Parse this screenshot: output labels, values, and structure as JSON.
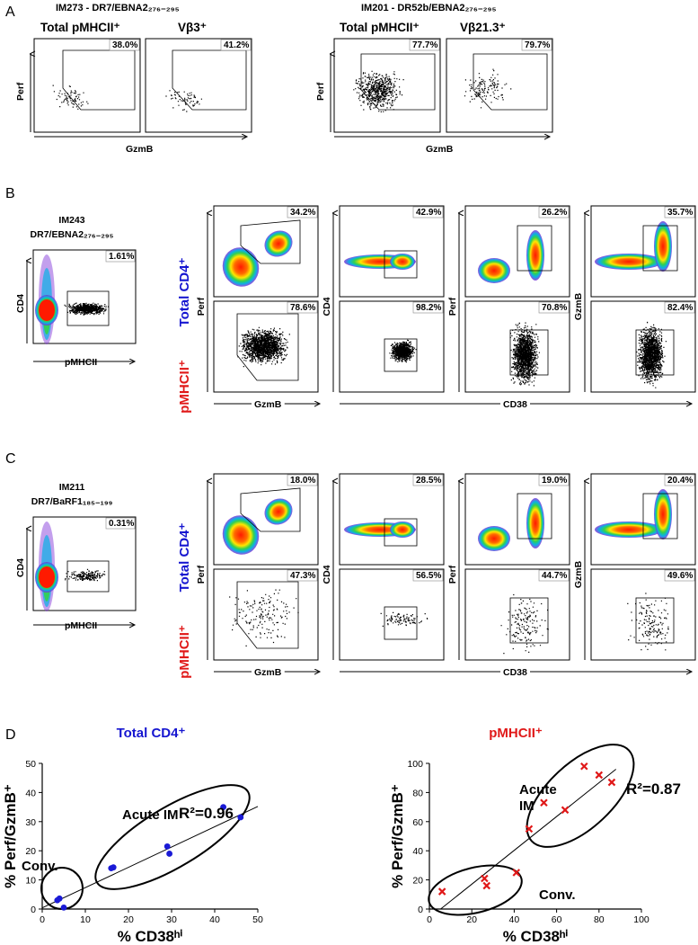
{
  "panel_labels": {
    "A": "A",
    "B": "B",
    "C": "C",
    "D": "D"
  },
  "A": {
    "im273": {
      "header": "IM273 - DR7/EBNA2₂₇₆₋₂₉₅",
      "p1": {
        "title": "Total pMHCII⁺",
        "pct": "38.0%"
      },
      "p2": {
        "title": "Vβ3⁺",
        "pct": "41.2%"
      },
      "xlabel": "GzmB",
      "ylabel": "Perf"
    },
    "im201": {
      "header": "IM201 - DR52b/EBNA2₂₇₆₋₂₉₅",
      "p1": {
        "title": "Total pMHCII⁺",
        "pct": "77.7%"
      },
      "p2": {
        "title": "Vβ21.3⁺",
        "pct": "79.7%"
      },
      "xlabel": "GzmB",
      "ylabel": "Perf"
    }
  },
  "B": {
    "donor": "IM243",
    "epitope": "DR7/EBNA2₂₇₆₋₂₉₅",
    "gate_pct": "1.61%",
    "ylabel": "CD4",
    "xlabel": "pMHCII",
    "row1_label": "Total CD4⁺",
    "row2_label": "pMHCII⁺",
    "row1_pcts": [
      "34.2%",
      "42.9%",
      "26.2%",
      "35.7%"
    ],
    "row2_pcts": [
      "78.6%",
      "98.2%",
      "70.8%",
      "82.4%"
    ],
    "col_ylabels": [
      "Perf",
      "CD4",
      "Perf",
      "GzmB"
    ],
    "xlabel_left": "GzmB",
    "xlabel_right": "CD38"
  },
  "C": {
    "donor": "IM211",
    "epitope": "DR7/BaRF1₁₈₅₋₁₉₉",
    "gate_pct": "0.31%",
    "ylabel": "CD4",
    "xlabel": "pMHCII",
    "row1_label": "Total CD4⁺",
    "row2_label": "pMHCII⁺",
    "row1_pcts": [
      "18.0%",
      "28.5%",
      "19.0%",
      "20.4%"
    ],
    "row2_pcts": [
      "47.3%",
      "56.5%",
      "44.7%",
      "49.6%"
    ],
    "col_ylabels": [
      "Perf",
      "CD4",
      "Perf",
      "GzmB"
    ],
    "xlabel_left": "GzmB",
    "xlabel_right": "CD38"
  },
  "chart_data": [
    {
      "type": "scatter",
      "title": "Total CD4⁺",
      "xlabel": "% CD38ʰⁱ",
      "ylabel": "% Perf/GzmB⁺",
      "xlim": [
        0,
        50
      ],
      "ylim": [
        0,
        50
      ],
      "xticks": [
        "0",
        "10",
        "20",
        "30",
        "40",
        "50"
      ],
      "yticks": [
        "0",
        "10",
        "20",
        "30",
        "40",
        "50"
      ],
      "points": [
        [
          3.5,
          3
        ],
        [
          4,
          3.6
        ],
        [
          5,
          0.5
        ],
        [
          16,
          14
        ],
        [
          16.5,
          14.3
        ],
        [
          29,
          21.5
        ],
        [
          29.5,
          19
        ],
        [
          42,
          35
        ],
        [
          46,
          31.5
        ]
      ],
      "fit": [
        [
          0,
          0.4
        ],
        [
          50,
          35.2
        ]
      ],
      "annotations": {
        "group1": "Conv.",
        "group2": "Acute IM",
        "r2": "R²=0.96"
      },
      "color": "#1a1ad6"
    },
    {
      "type": "scatter",
      "title": "pMHCII⁺",
      "xlabel": "% CD38ʰⁱ",
      "ylabel": "% Perf/GzmB⁺",
      "xlim": [
        0,
        100
      ],
      "ylim": [
        0,
        100
      ],
      "xticks": [
        "0",
        "20",
        "40",
        "60",
        "80",
        "100"
      ],
      "yticks": [
        "0",
        "20",
        "40",
        "60",
        "80",
        "100"
      ],
      "points": [
        [
          6,
          12
        ],
        [
          26,
          21
        ],
        [
          27,
          16
        ],
        [
          41,
          25
        ],
        [
          47,
          55
        ],
        [
          54,
          73
        ],
        [
          64,
          68
        ],
        [
          73,
          98
        ],
        [
          80,
          92
        ],
        [
          86,
          87
        ]
      ],
      "fit": [
        [
          5.3,
          0
        ],
        [
          88,
          96
        ]
      ],
      "annotations": {
        "group1": "Conv.",
        "group2": "Acute\nIM",
        "r2": "R²=0.87"
      },
      "color": "#e01818"
    }
  ]
}
